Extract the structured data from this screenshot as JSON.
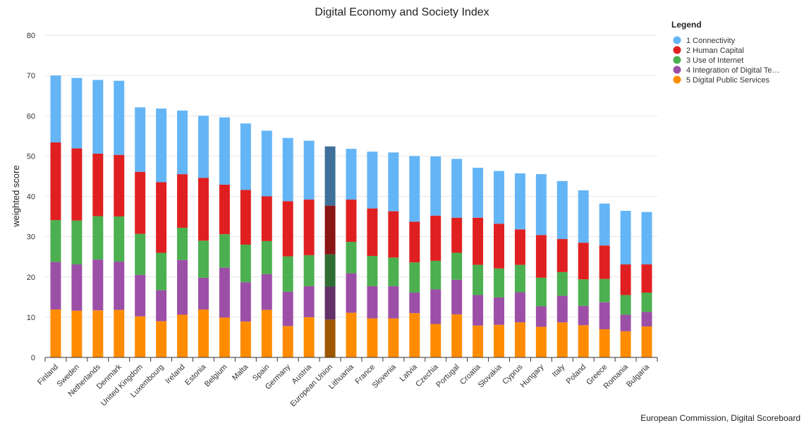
{
  "chart_data": {
    "type": "bar",
    "stacked": true,
    "title": "Digital Economy and Society Index",
    "xlabel": "",
    "ylabel": "weighted score",
    "ylim": [
      0,
      80
    ],
    "yticks": [
      0,
      10,
      20,
      30,
      40,
      50,
      60,
      70,
      80
    ],
    "grid": true,
    "legend_title": "Legend",
    "legend_position": "top-right",
    "credit": "European Commission, Digital Scoreboard",
    "highlight_category": "European Union",
    "categories": [
      "Finland",
      "Sweden",
      "Netherlands",
      "Denmark",
      "United Kingdom",
      "Luxembourg",
      "Ireland",
      "Estonia",
      "Belgium",
      "Malta",
      "Spain",
      "Germany",
      "Austria",
      "European Union",
      "Lithuania",
      "France",
      "Slovenia",
      "Latvia",
      "Czechia",
      "Portugal",
      "Croatia",
      "Slovakia",
      "Cyprus",
      "Hungary",
      "Italy",
      "Poland",
      "Greece",
      "Romania",
      "Bulgaria"
    ],
    "series": [
      {
        "name": "1 Connectivity",
        "legend_label": "1 Connectivity",
        "color": "#64b5f6",
        "values": [
          16.6,
          17.5,
          18.3,
          18.4,
          16.0,
          18.3,
          15.8,
          15.4,
          16.7,
          16.5,
          16.3,
          15.7,
          14.6,
          14.7,
          12.6,
          14.1,
          14.6,
          16.3,
          14.7,
          14.6,
          12.4,
          13.1,
          13.9,
          15.1,
          14.4,
          13.0,
          10.4,
          13.3,
          13.0
        ]
      },
      {
        "name": "2 Human Capital",
        "legend_label": "2 Human Capital",
        "color": "#e02020",
        "values": [
          19.3,
          17.9,
          15.5,
          15.3,
          15.4,
          17.5,
          13.3,
          15.6,
          12.3,
          13.6,
          11.1,
          13.7,
          13.8,
          12.1,
          10.5,
          11.8,
          11.5,
          10.1,
          11.2,
          8.7,
          11.7,
          11.1,
          8.8,
          10.6,
          8.2,
          9.1,
          8.3,
          7.6,
          7.0
        ]
      },
      {
        "name": "3 Use of Internet",
        "legend_label": "3 Use of Internet",
        "color": "#4caf50",
        "values": [
          10.4,
          10.9,
          10.8,
          11.2,
          10.2,
          9.3,
          8.0,
          9.2,
          8.3,
          9.3,
          8.2,
          8.8,
          7.7,
          8.0,
          7.8,
          7.5,
          7.1,
          7.5,
          7.1,
          6.7,
          7.5,
          7.2,
          6.8,
          7.1,
          5.9,
          6.6,
          5.8,
          4.9,
          4.8
        ]
      },
      {
        "name": "4 Integration of Digital Technology",
        "legend_label": "4 Integration of Digital Te…",
        "color": "#9c4fa6",
        "values": [
          11.8,
          11.5,
          12.6,
          12.0,
          10.3,
          7.7,
          13.6,
          7.9,
          12.4,
          9.8,
          8.9,
          8.5,
          7.7,
          8.2,
          9.8,
          8.0,
          8.0,
          5.1,
          8.6,
          8.6,
          7.6,
          6.8,
          7.5,
          5.1,
          6.6,
          4.8,
          6.7,
          4.1,
          3.6
        ]
      },
      {
        "name": "5 Digital Public Services",
        "legend_label": "5 Digital Public Services",
        "color": "#ff8c00",
        "values": [
          11.9,
          11.6,
          11.7,
          11.8,
          10.2,
          9.0,
          10.6,
          11.9,
          9.9,
          8.9,
          11.8,
          7.8,
          10.0,
          9.4,
          11.1,
          9.7,
          9.7,
          11.0,
          8.3,
          10.7,
          7.9,
          8.1,
          8.7,
          7.6,
          8.7,
          8.0,
          7.0,
          6.5,
          7.7
        ]
      }
    ]
  }
}
